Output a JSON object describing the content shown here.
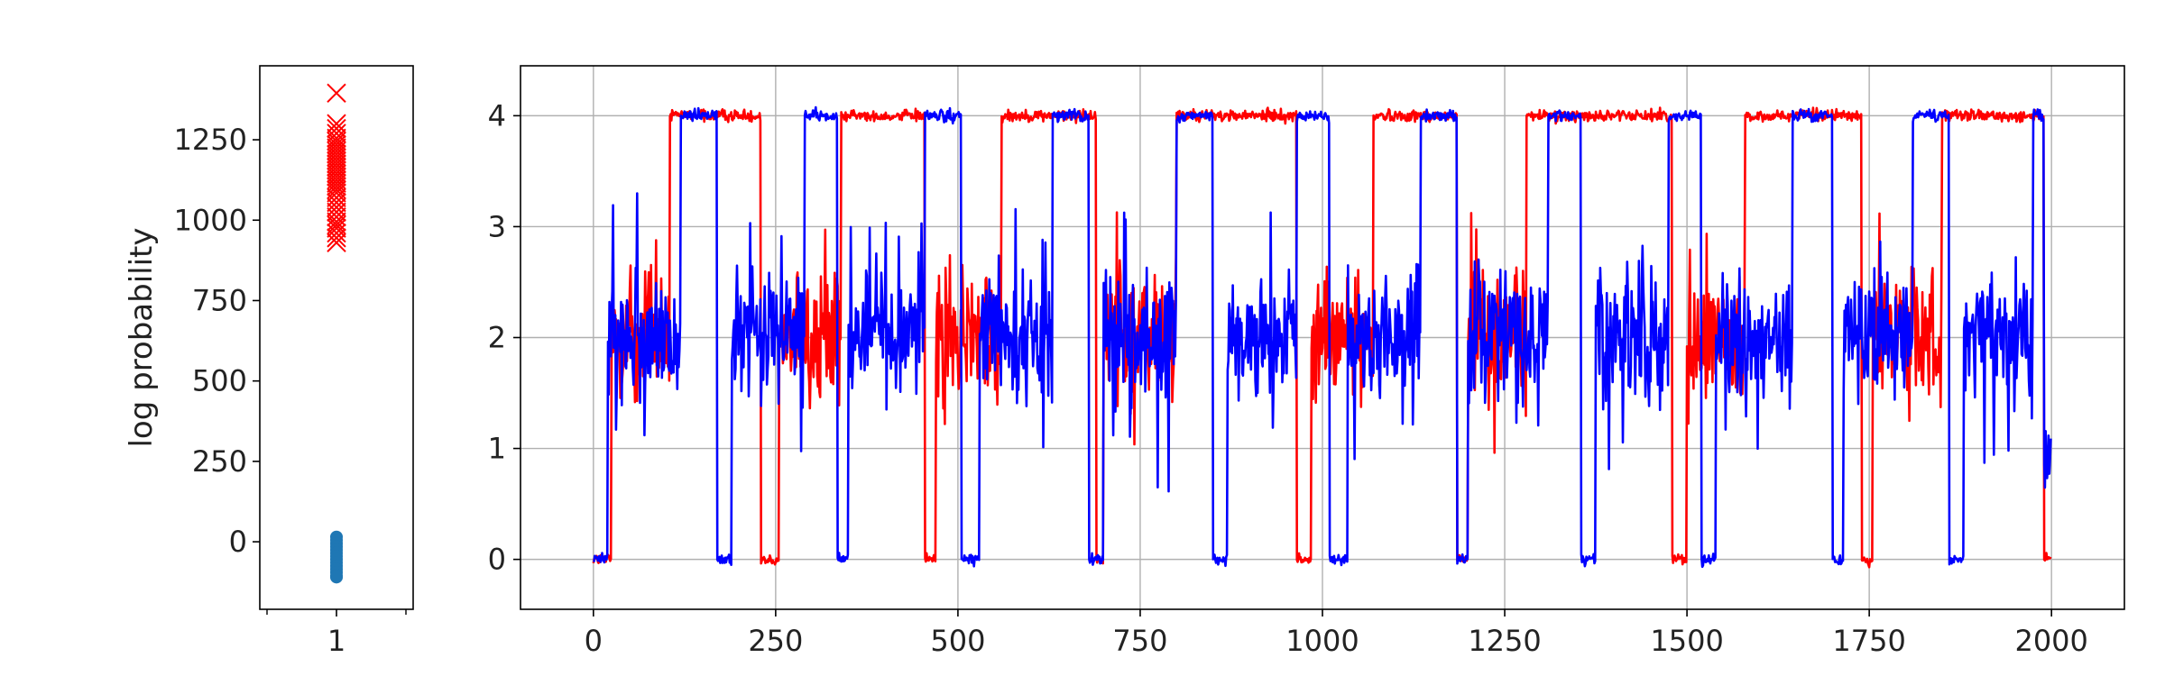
{
  "chart_data": [
    {
      "type": "scatter",
      "title": "",
      "xlabel": "",
      "ylabel": "log probability",
      "xlim": [
        0.5,
        1.5
      ],
      "ylim": [
        -210,
        1480
      ],
      "x_ticks": [
        1
      ],
      "x_tick_labels": [
        "1"
      ],
      "y_ticks": [
        0,
        250,
        500,
        750,
        1000,
        1250
      ],
      "y_tick_labels": [
        "0",
        "250",
        "500",
        "750",
        "1000",
        "1250"
      ],
      "grid": false,
      "series": [
        {
          "marker": "x",
          "color": "#ff0000",
          "x": 1,
          "values": [
            1395,
            1300,
            1285,
            1270,
            1255,
            1245,
            1235,
            1225,
            1215,
            1205,
            1195,
            1185,
            1175,
            1165,
            1155,
            1145,
            1135,
            1125,
            1115,
            1105,
            1095,
            1085,
            1070,
            1055,
            1040,
            1025,
            1010,
            995,
            985,
            975,
            960,
            945,
            930
          ]
        },
        {
          "marker": "circle",
          "color": "#1f77b4",
          "x": 1,
          "values": [
            15,
            5,
            -5,
            -15,
            -25,
            -35,
            -45,
            -55,
            -65,
            -75,
            -85,
            -95,
            -105,
            -110
          ]
        }
      ]
    },
    {
      "type": "line",
      "title": "",
      "xlabel": "",
      "ylabel": "",
      "xlim": [
        -100,
        2100
      ],
      "ylim": [
        -0.45,
        4.45
      ],
      "x_ticks": [
        0,
        250,
        500,
        750,
        1000,
        1250,
        1500,
        1750,
        2000
      ],
      "x_tick_labels": [
        "0",
        "250",
        "500",
        "750",
        "1000",
        "1250",
        "1500",
        "1750",
        "2000"
      ],
      "y_ticks": [
        0,
        1,
        2,
        3,
        4
      ],
      "y_tick_labels": [
        "0",
        "1",
        "2",
        "3",
        "4"
      ],
      "grid": true,
      "n_steps": 2000,
      "noise": {
        "low_state_sd": 0.05,
        "high_state_sd": 0.05,
        "middle_state_range": [
          0.4,
          3.6
        ]
      },
      "series": [
        {
          "color": "#ff0000",
          "states": [
            {
              "start": 0,
              "end": 25,
              "level": 0
            },
            {
              "start": 25,
              "end": 105,
              "level": 2
            },
            {
              "start": 105,
              "end": 230,
              "level": 4
            },
            {
              "start": 230,
              "end": 255,
              "level": 0
            },
            {
              "start": 255,
              "end": 340,
              "level": 2
            },
            {
              "start": 340,
              "end": 455,
              "level": 4
            },
            {
              "start": 455,
              "end": 470,
              "level": 0
            },
            {
              "start": 470,
              "end": 560,
              "level": 2
            },
            {
              "start": 560,
              "end": 690,
              "level": 4
            },
            {
              "start": 690,
              "end": 700,
              "level": 0
            },
            {
              "start": 700,
              "end": 800,
              "level": 2
            },
            {
              "start": 800,
              "end": 965,
              "level": 4
            },
            {
              "start": 965,
              "end": 985,
              "level": 0
            },
            {
              "start": 985,
              "end": 1070,
              "level": 2
            },
            {
              "start": 1070,
              "end": 1185,
              "level": 4
            },
            {
              "start": 1185,
              "end": 1200,
              "level": 0
            },
            {
              "start": 1200,
              "end": 1280,
              "level": 2
            },
            {
              "start": 1280,
              "end": 1480,
              "level": 4
            },
            {
              "start": 1480,
              "end": 1500,
              "level": 0
            },
            {
              "start": 1500,
              "end": 1580,
              "level": 2
            },
            {
              "start": 1580,
              "end": 1740,
              "level": 4
            },
            {
              "start": 1740,
              "end": 1755,
              "level": 0
            },
            {
              "start": 1755,
              "end": 1850,
              "level": 2
            },
            {
              "start": 1850,
              "end": 1990,
              "level": 4
            },
            {
              "start": 1990,
              "end": 2000,
              "level": 0
            }
          ]
        },
        {
          "color": "#0000ff",
          "states": [
            {
              "start": 0,
              "end": 20,
              "level": 0
            },
            {
              "start": 20,
              "end": 120,
              "level": 2
            },
            {
              "start": 120,
              "end": 170,
              "level": 4
            },
            {
              "start": 170,
              "end": 190,
              "level": 0
            },
            {
              "start": 190,
              "end": 290,
              "level": 2
            },
            {
              "start": 290,
              "end": 335,
              "level": 4
            },
            {
              "start": 335,
              "end": 350,
              "level": 0
            },
            {
              "start": 350,
              "end": 455,
              "level": 2
            },
            {
              "start": 455,
              "end": 505,
              "level": 4
            },
            {
              "start": 505,
              "end": 530,
              "level": 0
            },
            {
              "start": 530,
              "end": 630,
              "level": 2
            },
            {
              "start": 630,
              "end": 680,
              "level": 4
            },
            {
              "start": 680,
              "end": 700,
              "level": 0
            },
            {
              "start": 700,
              "end": 800,
              "level": 2
            },
            {
              "start": 800,
              "end": 850,
              "level": 4
            },
            {
              "start": 850,
              "end": 870,
              "level": 0
            },
            {
              "start": 870,
              "end": 965,
              "level": 2
            },
            {
              "start": 965,
              "end": 1010,
              "level": 4
            },
            {
              "start": 1010,
              "end": 1035,
              "level": 0
            },
            {
              "start": 1035,
              "end": 1135,
              "level": 2
            },
            {
              "start": 1135,
              "end": 1185,
              "level": 4
            },
            {
              "start": 1185,
              "end": 1200,
              "level": 0
            },
            {
              "start": 1200,
              "end": 1310,
              "level": 2
            },
            {
              "start": 1310,
              "end": 1355,
              "level": 4
            },
            {
              "start": 1355,
              "end": 1375,
              "level": 0
            },
            {
              "start": 1375,
              "end": 1475,
              "level": 2
            },
            {
              "start": 1475,
              "end": 1520,
              "level": 4
            },
            {
              "start": 1520,
              "end": 1540,
              "level": 0
            },
            {
              "start": 1540,
              "end": 1645,
              "level": 2
            },
            {
              "start": 1645,
              "end": 1700,
              "level": 4
            },
            {
              "start": 1700,
              "end": 1715,
              "level": 0
            },
            {
              "start": 1715,
              "end": 1810,
              "level": 2
            },
            {
              "start": 1810,
              "end": 1860,
              "level": 4
            },
            {
              "start": 1860,
              "end": 1880,
              "level": 0
            },
            {
              "start": 1880,
              "end": 1975,
              "level": 2
            },
            {
              "start": 1975,
              "end": 1990,
              "level": 4
            },
            {
              "start": 1990,
              "end": 2000,
              "level": 1
            }
          ]
        }
      ]
    }
  ]
}
